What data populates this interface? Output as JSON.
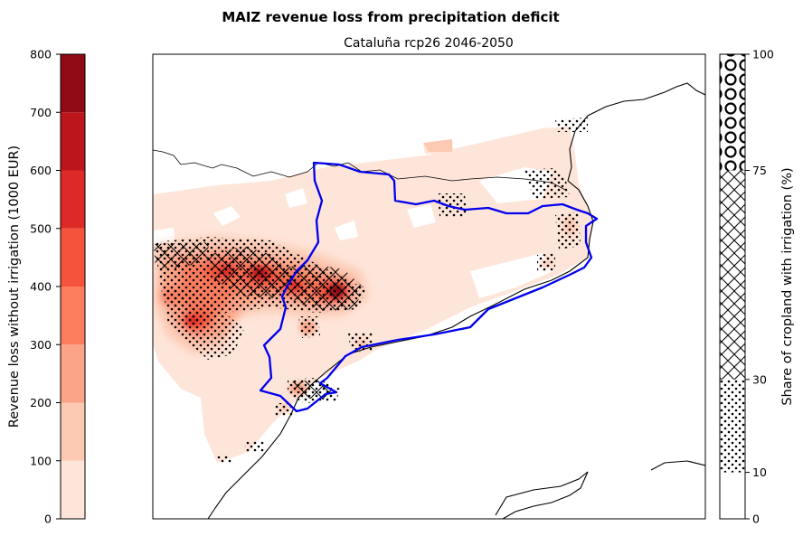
{
  "figure": {
    "title": "MAIZ revenue loss from precipitation deficit",
    "subtitle": "Cataluña rcp26 2046-2050"
  },
  "chart_data": {
    "type": "heatmap",
    "title": "MAIZ revenue loss from precipitation deficit",
    "subtitle": "Cataluña rcp26 2046-2050",
    "colorbar_left": {
      "label": "Revenue loss without irrigation (1000 EUR)",
      "range": [
        0,
        800
      ],
      "ticks": [
        "0",
        "100",
        "200",
        "300",
        "400",
        "500",
        "600",
        "700",
        "800"
      ],
      "bins": [
        {
          "from": 0,
          "to": 100,
          "color": "#fee5d9"
        },
        {
          "from": 100,
          "to": 200,
          "color": "#fcc9b3"
        },
        {
          "from": 200,
          "to": 300,
          "color": "#fca487"
        },
        {
          "from": 300,
          "to": 400,
          "color": "#fb7d5e"
        },
        {
          "from": 400,
          "to": 500,
          "color": "#f5533c"
        },
        {
          "from": 500,
          "to": 600,
          "color": "#dd2a27"
        },
        {
          "from": 600,
          "to": 700,
          "color": "#bd151c"
        },
        {
          "from": 700,
          "to": 800,
          "color": "#8f0a15"
        }
      ]
    },
    "colorbar_right": {
      "label": "Share of cropland with irrigation (%)",
      "range": [
        0,
        100
      ],
      "ticks": [
        "0",
        "10",
        "30",
        "75",
        "100"
      ],
      "bins": [
        {
          "from": 0,
          "to": 10,
          "pattern": "none"
        },
        {
          "from": 10,
          "to": 30,
          "pattern": "dots"
        },
        {
          "from": 30,
          "to": 75,
          "pattern": "crosshatch"
        },
        {
          "from": 75,
          "to": 100,
          "pattern": "circles"
        }
      ]
    },
    "map": {
      "region_outline_color": "#0000ee",
      "coastline_color": "#000000"
    }
  }
}
